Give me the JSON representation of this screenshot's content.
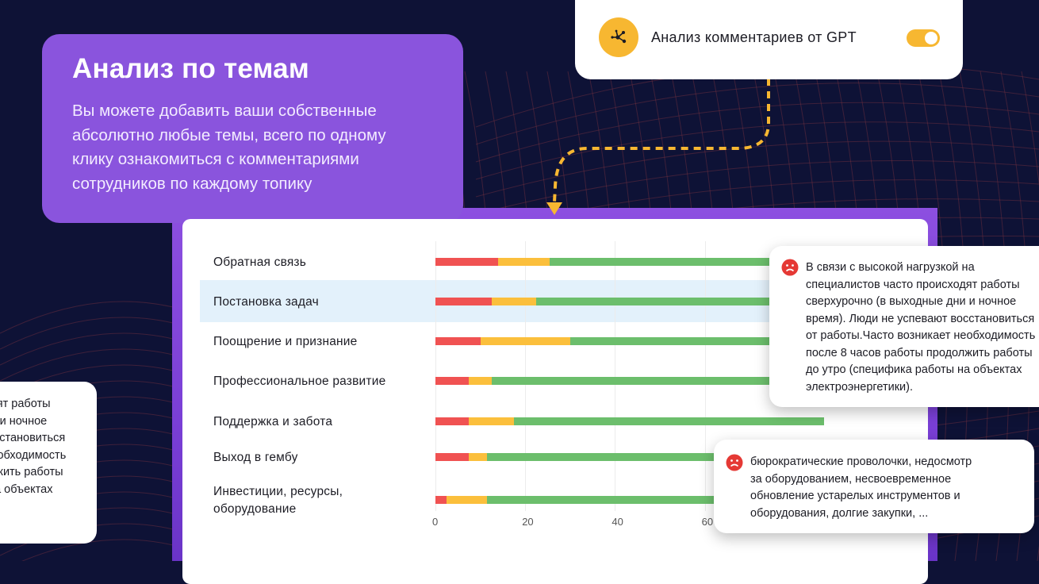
{
  "header": {
    "title": "Анализ по темам",
    "description": "Вы можете добавить ваши собственные\nабсолютно любые темы, всего по одному\nклику ознакомиться с комментариями\nсотрудников по каждому топику"
  },
  "gpt_toggle": {
    "label": "Анализ комментариев от GPT",
    "enabled": true,
    "icon": "network-nodes-icon"
  },
  "colors": {
    "negative": "#f05252",
    "neutral": "#fbbf3c",
    "positive": "#6cbe6c",
    "accent": "#8a54dd",
    "toggle": "#f7b731"
  },
  "chart_data": {
    "type": "bar",
    "orientation": "horizontal",
    "stacked": true,
    "categories": [
      "Обратная связь",
      "Постановка задач",
      "Поощрение и признание",
      "Профессиональное развитие",
      "Поддержка и забота",
      "Выход в гембу",
      "Инвестиции, ресурсы, оборудование"
    ],
    "series": [
      {
        "color": "#f05252",
        "values": [
          14,
          12.5,
          10,
          7.5,
          7.5,
          7.5,
          2.5
        ]
      },
      {
        "color": "#fbbf3c",
        "values": [
          11.5,
          10,
          20,
          5,
          10,
          4,
          9
        ]
      },
      {
        "color": "#6cbe6c",
        "values": [
          74.5,
          77.5,
          70,
          87.5,
          69,
          70,
          70
        ]
      }
    ],
    "x_ticks": [
      "0",
      "20",
      "40",
      "60"
    ],
    "xlim": [
      0,
      100
    ],
    "highlighted_category": "Постановка задач"
  },
  "comments": {
    "right_top": "В связи с высокой нагрузкой на\nспециалистов часто происходят работы\nсверхурочно (в выходные дни и ночное\nвремя). Люди не успевают восстановиться\nот работы.Часто возникает необходимость\nпосле 8 часов работы продолжить работы\nдо утро (специфика работы на объектах\nэлектроэнергетики).",
    "right_bottom": "бюрократические проволочки, недосмотр\nза оборудованием, несвоевременное\nобновление устарелых инструментов и\nоборудования, долгие закупки, ...",
    "left": "специалистов часто происходят работы\nсверхурочно (в выходные дни и ночное\nвремя). Люди не успевают восстановиться\nот работы.Часто возникает необходимость\nпосле 8 часов работы продолжить работы\nдо утро (специфика работы на объектах"
  }
}
